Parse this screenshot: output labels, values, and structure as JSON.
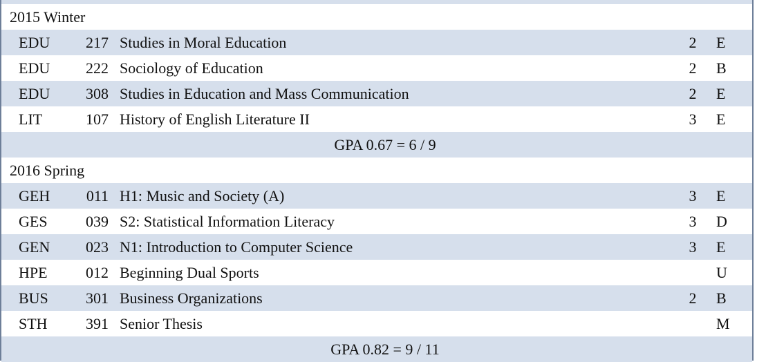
{
  "terms": [
    {
      "label": "2015  Winter",
      "courses": [
        {
          "dept": "EDU",
          "num": "217",
          "title": "Studies in Moral Education",
          "credits": "2",
          "grade": "E"
        },
        {
          "dept": "EDU",
          "num": "222",
          "title": "Sociology of Education",
          "credits": "2",
          "grade": "B"
        },
        {
          "dept": "EDU",
          "num": "308",
          "title": "Studies in Education and Mass Communication",
          "credits": "2",
          "grade": "E"
        },
        {
          "dept": "LIT",
          "num": "107",
          "title": "History of English Literature II",
          "credits": "3",
          "grade": "E"
        }
      ],
      "gpa": "GPA 0.67 = 6 / 9"
    },
    {
      "label": "2016  Spring",
      "courses": [
        {
          "dept": "GEH",
          "num": "011",
          "title": "H1: Music and Society (A)",
          "credits": "3",
          "grade": "E"
        },
        {
          "dept": "GES",
          "num": "039",
          "title": "S2: Statistical Information Literacy",
          "credits": "3",
          "grade": "D"
        },
        {
          "dept": "GEN",
          "num": "023",
          "title": "N1: Introduction to Computer Science",
          "credits": "3",
          "grade": "E"
        },
        {
          "dept": "HPE",
          "num": "012",
          "title": "Beginning Dual Sports",
          "credits": "",
          "grade": "U"
        },
        {
          "dept": "BUS",
          "num": "301",
          "title": "Business Organizations",
          "credits": "2",
          "grade": "B"
        },
        {
          "dept": "STH",
          "num": "391",
          "title": "Senior Thesis",
          "credits": "",
          "grade": "M"
        }
      ],
      "gpa": "GPA 0.82 = 9 / 11"
    }
  ]
}
